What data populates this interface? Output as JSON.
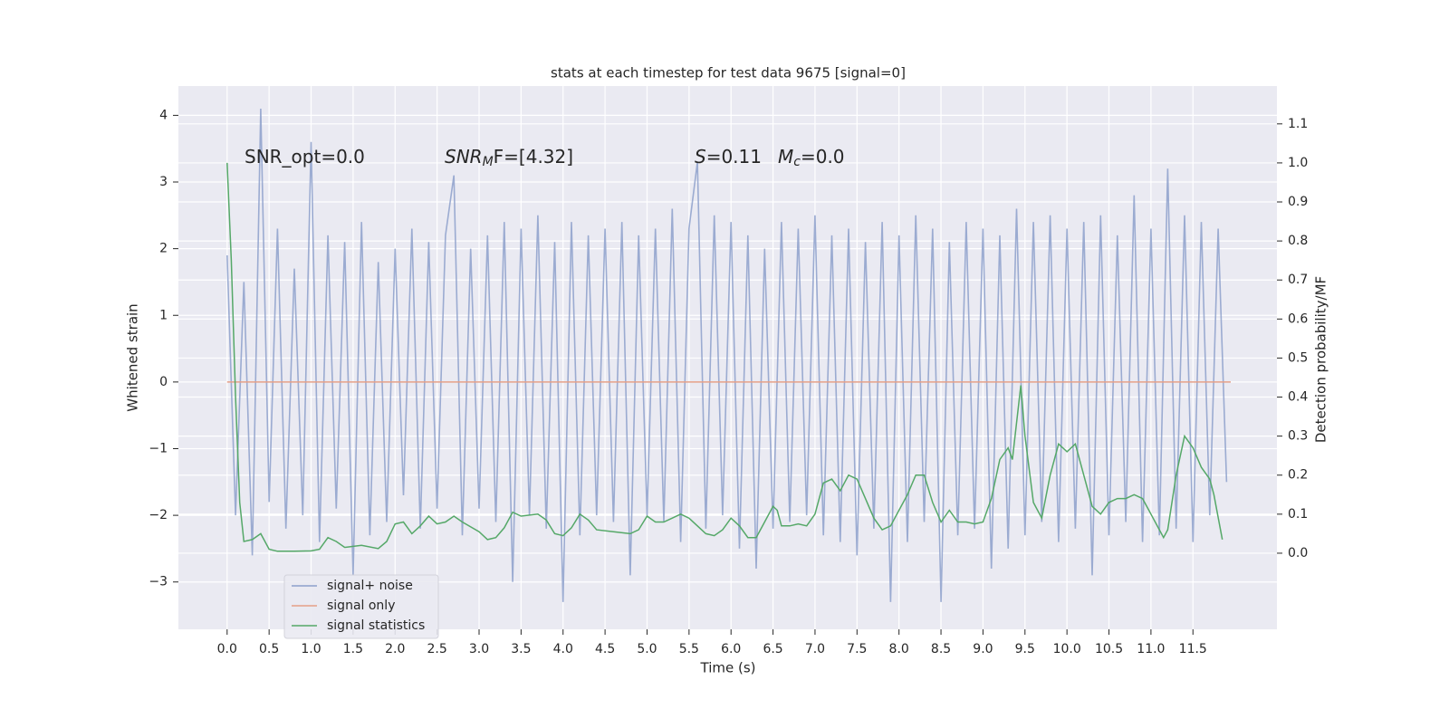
{
  "chart_data": {
    "type": "line",
    "title": "stats at each timestep for test data 9675 [signal=0]",
    "x_label": "Time (s)",
    "y_label": "Whitened strain",
    "y2_label": "Detection probability/MF",
    "annotations": [
      {
        "main": "SNR_opt=0.0"
      },
      {
        "main": "SNR",
        "sub": "M",
        "rest": "F=[4.32]"
      },
      {
        "main": "S",
        "rest": "=0.11"
      },
      {
        "main": "M",
        "sub": "c",
        "rest": "=0.0"
      }
    ],
    "legend": "lower left",
    "grid": true,
    "xlim": [
      -0.58,
      12.5
    ],
    "ylim": [
      -3.71,
      4.44
    ],
    "y2lim": [
      -0.195,
      1.197
    ],
    "xticks": [
      {
        "value": 0,
        "label": "0.0"
      },
      0.5,
      {
        "value": 1,
        "label": "1.0"
      },
      1.5,
      {
        "value": 2,
        "label": "2.0"
      },
      2.5,
      {
        "value": 3,
        "label": "3.0"
      },
      3.5,
      {
        "value": 4,
        "label": "4.0"
      },
      4.5,
      {
        "value": 5,
        "label": "5.0"
      },
      5.5,
      {
        "value": 6,
        "label": "6.0"
      },
      6.5,
      {
        "value": 7,
        "label": "7.0"
      },
      7.5,
      {
        "value": 8,
        "label": "8.0"
      },
      8.5,
      {
        "value": 9,
        "label": "9.0"
      },
      9.5,
      {
        "value": 10,
        "label": "10.0"
      },
      10.5,
      {
        "value": 11,
        "label": "11.0"
      },
      11.5
    ],
    "yticks": [
      {
        "value": -3,
        "label": "−3"
      },
      {
        "value": -2,
        "label": "−2"
      },
      {
        "value": -1,
        "label": "−1"
      },
      0,
      1,
      2,
      3,
      4
    ],
    "y2ticks": [
      {
        "value": 0,
        "label": "0.0"
      },
      0.1,
      0.2,
      0.3,
      0.4,
      0.5,
      0.6,
      0.7,
      0.8,
      0.9,
      {
        "value": 1,
        "label": "1.0"
      },
      1.1
    ],
    "series": [
      {
        "name": "signal+ noise",
        "color": "#8da0cb",
        "x": [
          0,
          0.1,
          0.2,
          0.3,
          0.4,
          0.5,
          0.6,
          0.7,
          0.8,
          0.9,
          1,
          1.1,
          1.2,
          1.3,
          1.4,
          1.5,
          1.6,
          1.7,
          1.8,
          1.9,
          2,
          2.1,
          2.2,
          2.3,
          2.4,
          2.5,
          2.6,
          2.7,
          2.8,
          2.9,
          3,
          3.1,
          3.2,
          3.3,
          3.4,
          3.5,
          3.6,
          3.7,
          3.8,
          3.9,
          4,
          4.1,
          4.2,
          4.3,
          4.4,
          4.5,
          4.6,
          4.7,
          4.8,
          4.9,
          5,
          5.1,
          5.2,
          5.3,
          5.4,
          5.5,
          5.6,
          5.7,
          5.8,
          5.9,
          6,
          6.1,
          6.2,
          6.3,
          6.4,
          6.5,
          6.6,
          6.7,
          6.8,
          6.9,
          7,
          7.1,
          7.2,
          7.3,
          7.4,
          7.5,
          7.6,
          7.7,
          7.8,
          7.9,
          8,
          8.1,
          8.2,
          8.3,
          8.4,
          8.5,
          8.6,
          8.7,
          8.8,
          8.9,
          9,
          9.1,
          9.2,
          9.3,
          9.4,
          9.5,
          9.6,
          9.7,
          9.8,
          9.9,
          10,
          10.1,
          10.2,
          10.3,
          10.4,
          10.5,
          10.6,
          10.7,
          10.8,
          10.9,
          11,
          11.1,
          11.2,
          11.3,
          11.4,
          11.5,
          11.6,
          11.7,
          11.8,
          11.9
        ],
        "values": [
          1.9,
          -2.0,
          1.5,
          -2.6,
          4.1,
          -1.8,
          2.3,
          -2.2,
          1.7,
          -2.0,
          3.6,
          -2.4,
          2.2,
          -1.9,
          2.1,
          -2.9,
          2.4,
          -2.3,
          1.8,
          -2.1,
          2.0,
          -1.7,
          2.3,
          -2.2,
          2.1,
          -1.9,
          2.2,
          3.1,
          -2.3,
          2.0,
          -1.9,
          2.2,
          -2.1,
          2.4,
          -3.0,
          2.3,
          -2.0,
          2.5,
          -2.2,
          2.1,
          -3.3,
          2.4,
          -2.3,
          2.2,
          -2.0,
          2.3,
          -2.1,
          2.4,
          -2.9,
          2.2,
          -2.0,
          2.3,
          -2.1,
          2.6,
          -2.4,
          2.3,
          3.3,
          -2.2,
          2.5,
          -2.0,
          2.4,
          -2.5,
          2.2,
          -2.8,
          2.0,
          -2.2,
          2.4,
          -2.1,
          2.3,
          -2.0,
          2.5,
          -2.3,
          2.2,
          -2.4,
          2.3,
          -2.6,
          2.1,
          -2.2,
          2.4,
          -3.3,
          2.2,
          -2.4,
          2.5,
          -2.1,
          2.3,
          -3.3,
          2.1,
          -2.3,
          2.4,
          -2.2,
          2.3,
          -2.8,
          2.2,
          -2.5,
          2.6,
          -2.3,
          2.4,
          -2.1,
          2.5,
          -2.4,
          2.3,
          -2.2,
          2.4,
          -2.9,
          2.5,
          -2.3,
          2.2,
          -2.1,
          2.8,
          -2.4,
          2.3,
          -2.3,
          3.2,
          -2.2,
          2.5,
          -2.4,
          2.4,
          -2.0,
          2.3,
          -1.5
        ]
      },
      {
        "name": "signal only",
        "color": "#e5a088",
        "x": [
          0,
          11.95
        ],
        "values": [
          0,
          0
        ]
      },
      {
        "name": "signal statistics",
        "color": "#55a868",
        "axis": "y2",
        "x": [
          0,
          0.05,
          0.1,
          0.15,
          0.2,
          0.3,
          0.4,
          0.5,
          0.6,
          0.8,
          1.0,
          1.1,
          1.2,
          1.3,
          1.4,
          1.6,
          1.8,
          1.9,
          2.0,
          2.1,
          2.2,
          2.3,
          2.4,
          2.5,
          2.6,
          2.7,
          2.8,
          3.0,
          3.1,
          3.2,
          3.3,
          3.4,
          3.5,
          3.7,
          3.8,
          3.9,
          4.0,
          4.1,
          4.2,
          4.3,
          4.4,
          4.6,
          4.8,
          4.9,
          5.0,
          5.1,
          5.2,
          5.3,
          5.4,
          5.5,
          5.6,
          5.7,
          5.8,
          5.9,
          6.0,
          6.1,
          6.2,
          6.3,
          6.4,
          6.5,
          6.55,
          6.6,
          6.7,
          6.8,
          6.9,
          7.0,
          7.1,
          7.2,
          7.3,
          7.4,
          7.5,
          7.6,
          7.7,
          7.8,
          7.9,
          8.0,
          8.1,
          8.2,
          8.3,
          8.4,
          8.5,
          8.6,
          8.7,
          8.8,
          8.9,
          9.0,
          9.1,
          9.2,
          9.3,
          9.35,
          9.45,
          9.5,
          9.6,
          9.7,
          9.8,
          9.9,
          10.0,
          10.1,
          10.2,
          10.3,
          10.4,
          10.5,
          10.6,
          10.7,
          10.8,
          10.9,
          11.0,
          11.1,
          11.15,
          11.2,
          11.3,
          11.4,
          11.5,
          11.6,
          11.7,
          11.75,
          11.85
        ],
        "values": [
          1.0,
          0.75,
          0.4,
          0.13,
          0.03,
          0.035,
          0.05,
          0.01,
          0.005,
          0.005,
          0.006,
          0.01,
          0.04,
          0.03,
          0.015,
          0.02,
          0.012,
          0.03,
          0.075,
          0.08,
          0.05,
          0.07,
          0.095,
          0.075,
          0.08,
          0.095,
          0.08,
          0.055,
          0.035,
          0.04,
          0.065,
          0.105,
          0.095,
          0.1,
          0.085,
          0.05,
          0.045,
          0.065,
          0.1,
          0.085,
          0.06,
          0.055,
          0.05,
          0.06,
          0.095,
          0.08,
          0.08,
          0.09,
          0.1,
          0.09,
          0.07,
          0.05,
          0.045,
          0.06,
          0.09,
          0.07,
          0.04,
          0.04,
          0.08,
          0.12,
          0.11,
          0.07,
          0.07,
          0.075,
          0.07,
          0.1,
          0.18,
          0.19,
          0.16,
          0.2,
          0.19,
          0.14,
          0.09,
          0.06,
          0.07,
          0.11,
          0.15,
          0.2,
          0.2,
          0.13,
          0.08,
          0.11,
          0.08,
          0.08,
          0.075,
          0.08,
          0.14,
          0.24,
          0.27,
          0.24,
          0.43,
          0.3,
          0.13,
          0.09,
          0.2,
          0.28,
          0.26,
          0.28,
          0.2,
          0.12,
          0.1,
          0.13,
          0.14,
          0.14,
          0.15,
          0.14,
          0.1,
          0.06,
          0.04,
          0.06,
          0.2,
          0.3,
          0.27,
          0.22,
          0.19,
          0.15,
          0.035
        ]
      }
    ]
  }
}
